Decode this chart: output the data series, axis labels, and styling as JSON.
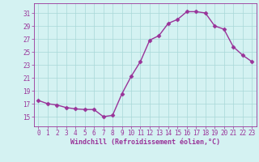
{
  "x": [
    0,
    1,
    2,
    3,
    4,
    5,
    6,
    7,
    8,
    9,
    10,
    11,
    12,
    13,
    14,
    15,
    16,
    17,
    18,
    19,
    20,
    21,
    22,
    23
  ],
  "y": [
    17.5,
    17.0,
    16.8,
    16.4,
    16.2,
    16.1,
    16.1,
    15.0,
    15.2,
    18.5,
    21.2,
    23.5,
    26.8,
    27.5,
    29.4,
    30.0,
    31.2,
    31.2,
    31.0,
    29.0,
    28.5,
    25.8,
    24.5,
    23.5
  ],
  "line_color": "#993399",
  "marker": "D",
  "marker_size": 2.5,
  "bg_color": "#d4f2f2",
  "grid_color": "#a8d8d8",
  "tick_label_color": "#993399",
  "xlabel": "Windchill (Refroidissement éolien,°C)",
  "xlabel_color": "#993399",
  "yticks": [
    15,
    17,
    19,
    21,
    23,
    25,
    27,
    29,
    31
  ],
  "ylim": [
    13.5,
    32.5
  ],
  "xlim": [
    -0.5,
    23.5
  ],
  "font_color": "#993399",
  "tick_fontsize": 5.5,
  "xlabel_fontsize": 6.0
}
